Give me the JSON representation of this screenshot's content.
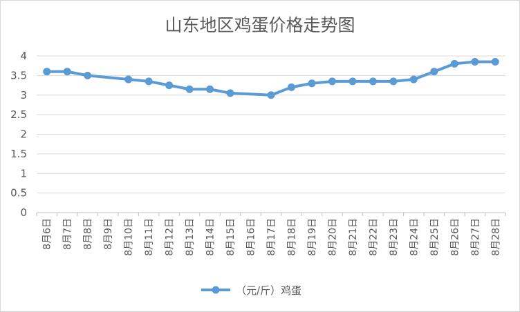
{
  "chart_data": {
    "type": "line",
    "title": "山东地区鸡蛋价格走势图",
    "xlabel": "",
    "ylabel": "",
    "ylim": [
      0,
      4
    ],
    "yticks": [
      "0",
      "0.5",
      "1",
      "1.5",
      "2",
      "2.5",
      "3",
      "3.5",
      "4"
    ],
    "categories": [
      "8月6日",
      "8月7日",
      "8月8日",
      "8月9日",
      "8月10日",
      "8月11日",
      "8月12日",
      "8月13日",
      "8月14日",
      "8月15日",
      "8月16日",
      "8月17日",
      "8月18日",
      "8月19日",
      "8月20日",
      "8月21日",
      "8月22日",
      "8月23日",
      "8月24日",
      "8月25日",
      "8月26日",
      "8月27日",
      "8月28日"
    ],
    "series": [
      {
        "name": "（元/斤）鸡蛋",
        "color": "#5b9bd5",
        "values": [
          3.6,
          3.6,
          3.5,
          null,
          3.4,
          3.35,
          3.25,
          3.15,
          3.15,
          3.05,
          null,
          3.0,
          3.2,
          3.3,
          3.35,
          3.35,
          3.35,
          3.35,
          3.4,
          3.6,
          3.8,
          3.85,
          3.85
        ]
      }
    ],
    "grid": true,
    "legend": "bottom"
  }
}
